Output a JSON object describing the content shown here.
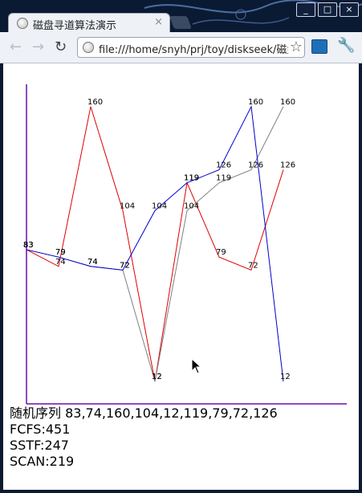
{
  "browser": {
    "tab_title": "磁盘寻道算法演示",
    "tab_close": "×",
    "url": "file:///home/snyh/prj/toy/diskseek/磁盘",
    "window_controls": [
      "_",
      "□",
      "×"
    ],
    "nav": {
      "back": "←",
      "forward": "→",
      "reload": "↻",
      "star": "☆",
      "wrench": "🔧"
    }
  },
  "chart_data": {
    "type": "line",
    "ylim": [
      0,
      180
    ],
    "series": [
      {
        "color": "#e00000",
        "values": [
          83,
          74,
          160,
          104,
          12,
          119,
          79,
          72,
          126
        ]
      },
      {
        "color": "#808080",
        "values": [
          83,
          79,
          74,
          72,
          12,
          104,
          119,
          126,
          160
        ]
      },
      {
        "color": "#0000cc",
        "values": [
          83,
          79,
          74,
          72,
          104,
          119,
          126,
          160,
          12
        ]
      }
    ],
    "point_labels": [
      "83",
      "79",
      "74",
      "72",
      "104",
      "119",
      "126",
      "160",
      "12",
      "74",
      "160",
      "104",
      "12",
      "119",
      "79",
      "72",
      "126",
      "104",
      "119",
      "126",
      "160"
    ],
    "axis_color": "#6a0dad"
  },
  "summary": {
    "sequence": "随机序列 83,74,160,104,12,119,79,72,126",
    "fcfs": "FCFS:451",
    "sstf": "SSTF:247",
    "scan": "SCAN:219"
  }
}
